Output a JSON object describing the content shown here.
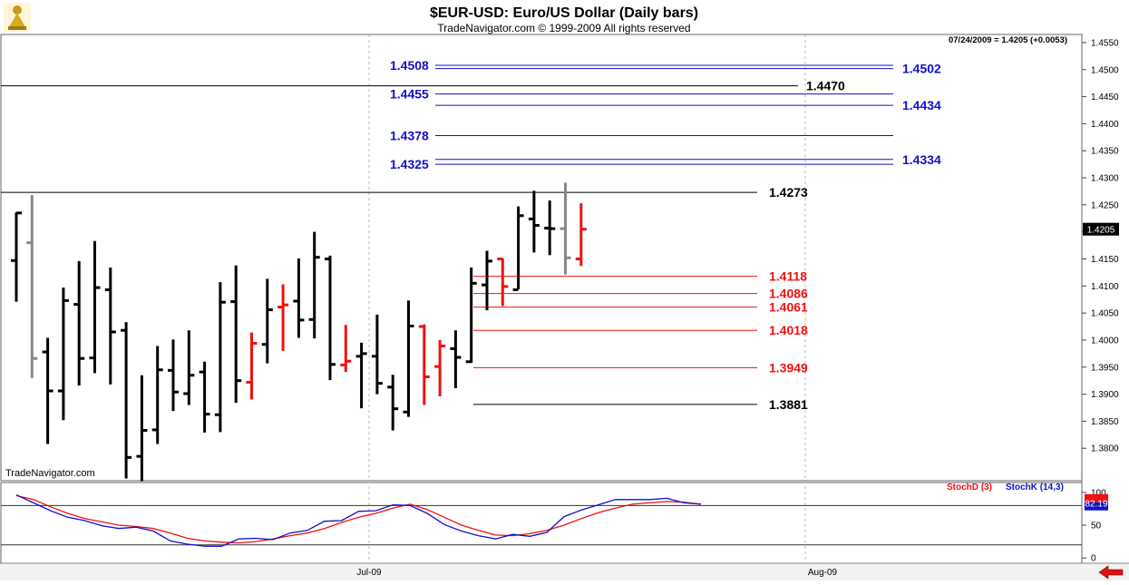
{
  "header": {
    "title": "$EUR-USD:  Euro/US Dollar  (Daily bars)",
    "copyright": "TradeNavigator.com © 1999-2009 All rights reserved",
    "quote": "07/24/2009 = 1.4205 (+0.0053)",
    "watermark": "TradeNavigator.com"
  },
  "colors": {
    "up_bar": "#000000",
    "down_bar": "#ee1111",
    "neutral_bar": "#888888",
    "blue_level": "#1010cc",
    "red_level": "#ee1111",
    "black_level": "#000000",
    "stoch_d": "#ee1111",
    "stoch_k": "#1010cc",
    "grid": "#bbbbbb"
  },
  "chart_data": [
    {
      "type": "ohlc",
      "title": "$EUR-USD:  Euro/US Dollar  (Daily bars)",
      "ylim": [
        1.374,
        1.4565
      ],
      "yticks": [
        "1.3800",
        "1.3850",
        "1.3900",
        "1.3950",
        "1.4000",
        "1.4050",
        "1.4100",
        "1.4150",
        "1.4200",
        "1.4250",
        "1.4300",
        "1.4350",
        "1.4400",
        "1.4450",
        "1.4500",
        "1.4550"
      ],
      "xticks": [
        "Jul-09",
        "Aug-09"
      ],
      "last_price_label": "1.4205",
      "bars": [
        {
          "o": 1.4147,
          "h": 1.4236,
          "l": 1.4071,
          "c": 1.4235,
          "color": "up"
        },
        {
          "o": 1.418,
          "h": 1.4268,
          "l": 1.393,
          "c": 1.3966,
          "color": "neutral"
        },
        {
          "o": 1.3978,
          "h": 1.4004,
          "l": 1.3808,
          "c": 1.3906,
          "color": "up"
        },
        {
          "o": 1.3906,
          "h": 1.4097,
          "l": 1.3852,
          "c": 1.4073,
          "color": "up"
        },
        {
          "o": 1.4066,
          "h": 1.4146,
          "l": 1.3916,
          "c": 1.3966,
          "color": "up"
        },
        {
          "o": 1.3967,
          "h": 1.4183,
          "l": 1.3939,
          "c": 1.4097,
          "color": "up"
        },
        {
          "o": 1.4093,
          "h": 1.4134,
          "l": 1.3918,
          "c": 1.4015,
          "color": "up"
        },
        {
          "o": 1.4018,
          "h": 1.4033,
          "l": 1.3744,
          "c": 1.3783,
          "color": "up"
        },
        {
          "o": 1.3785,
          "h": 1.3935,
          "l": 1.3739,
          "c": 1.3833,
          "color": "up"
        },
        {
          "o": 1.3834,
          "h": 1.3989,
          "l": 1.3808,
          "c": 1.3945,
          "color": "up"
        },
        {
          "o": 1.3944,
          "h": 1.4001,
          "l": 1.3869,
          "c": 1.3904,
          "color": "up"
        },
        {
          "o": 1.3901,
          "h": 1.4018,
          "l": 1.388,
          "c": 1.3935,
          "color": "up"
        },
        {
          "o": 1.3941,
          "h": 1.396,
          "l": 1.3829,
          "c": 1.3863,
          "color": "up"
        },
        {
          "o": 1.3862,
          "h": 1.4107,
          "l": 1.383,
          "c": 1.407,
          "color": "up"
        },
        {
          "o": 1.4071,
          "h": 1.4138,
          "l": 1.3884,
          "c": 1.3925,
          "color": "up"
        },
        {
          "o": 1.3922,
          "h": 1.4014,
          "l": 1.389,
          "c": 1.3994,
          "color": "down"
        },
        {
          "o": 1.3992,
          "h": 1.4113,
          "l": 1.3957,
          "c": 1.4056,
          "color": "up"
        },
        {
          "o": 1.4061,
          "h": 1.4103,
          "l": 1.398,
          "c": 1.4065,
          "color": "down"
        },
        {
          "o": 1.4072,
          "h": 1.4151,
          "l": 1.4004,
          "c": 1.4037,
          "color": "up"
        },
        {
          "o": 1.4038,
          "h": 1.42,
          "l": 1.4003,
          "c": 1.4153,
          "color": "up"
        },
        {
          "o": 1.415,
          "h": 1.4156,
          "l": 1.3926,
          "c": 1.3955,
          "color": "up"
        },
        {
          "o": 1.3954,
          "h": 1.4028,
          "l": 1.3941,
          "c": 1.3961,
          "color": "down"
        },
        {
          "o": 1.397,
          "h": 1.3995,
          "l": 1.3874,
          "c": 1.3975,
          "color": "up"
        },
        {
          "o": 1.397,
          "h": 1.4047,
          "l": 1.39,
          "c": 1.392,
          "color": "up"
        },
        {
          "o": 1.3913,
          "h": 1.3936,
          "l": 1.3833,
          "c": 1.3873,
          "color": "up"
        },
        {
          "o": 1.3867,
          "h": 1.4073,
          "l": 1.3858,
          "c": 1.4026,
          "color": "up"
        },
        {
          "o": 1.4025,
          "h": 1.4029,
          "l": 1.388,
          "c": 1.3932,
          "color": "down"
        },
        {
          "o": 1.3951,
          "h": 1.4,
          "l": 1.3896,
          "c": 1.3989,
          "color": "down"
        },
        {
          "o": 1.3984,
          "h": 1.4018,
          "l": 1.3911,
          "c": 1.3968,
          "color": "up"
        },
        {
          "o": 1.396,
          "h": 1.4134,
          "l": 1.3958,
          "c": 1.4105,
          "color": "up"
        },
        {
          "o": 1.4102,
          "h": 1.4165,
          "l": 1.4055,
          "c": 1.4146,
          "color": "up"
        },
        {
          "o": 1.415,
          "h": 1.4151,
          "l": 1.4063,
          "c": 1.4099,
          "color": "down"
        },
        {
          "o": 1.4093,
          "h": 1.4247,
          "l": 1.4094,
          "c": 1.423,
          "color": "up"
        },
        {
          "o": 1.4224,
          "h": 1.4276,
          "l": 1.4162,
          "c": 1.4212,
          "color": "up"
        },
        {
          "o": 1.4207,
          "h": 1.4258,
          "l": 1.4157,
          "c": 1.4206,
          "color": "up"
        },
        {
          "o": 1.4206,
          "h": 1.4291,
          "l": 1.4121,
          "c": 1.4152,
          "color": "neutral"
        },
        {
          "o": 1.415,
          "h": 1.4253,
          "l": 1.4137,
          "c": 1.4205,
          "color": "down"
        }
      ],
      "levels": [
        {
          "value": 1.4508,
          "label": "1.4508",
          "color": "blue",
          "side": "left"
        },
        {
          "value": 1.4502,
          "label": "1.4502",
          "color": "blue",
          "side": "right"
        },
        {
          "value": 1.447,
          "label": "1.4470",
          "color": "black",
          "side": "right"
        },
        {
          "value": 1.4455,
          "label": "1.4455",
          "color": "blue",
          "side": "left"
        },
        {
          "value": 1.4434,
          "label": "1.4434",
          "color": "blue",
          "side": "right"
        },
        {
          "value": 1.4378,
          "label": "1.4378",
          "color": "blue",
          "side": "left"
        },
        {
          "value": 1.4334,
          "label": "1.4334",
          "color": "blue",
          "side": "right"
        },
        {
          "value": 1.4325,
          "label": "1.4325",
          "color": "blue",
          "side": "left"
        },
        {
          "value": 1.4273,
          "label": "1.4273",
          "color": "black",
          "side": "right"
        },
        {
          "value": 1.4118,
          "label": "1.4118",
          "color": "red",
          "side": "right"
        },
        {
          "value": 1.4086,
          "label": "1.4086",
          "color": "red",
          "side": "right"
        },
        {
          "value": 1.4061,
          "label": "1.4061",
          "color": "red",
          "side": "right"
        },
        {
          "value": 1.4018,
          "label": "1.4018",
          "color": "red",
          "side": "right"
        },
        {
          "value": 1.3949,
          "label": "1.3949",
          "color": "red",
          "side": "right"
        },
        {
          "value": 1.3881,
          "label": "1.3881",
          "color": "black",
          "side": "right"
        }
      ]
    },
    {
      "type": "line",
      "legend": [
        "StochD (3)",
        "StochK (14,3)"
      ],
      "ylim": [
        -8,
        115
      ],
      "yticks": [
        "100",
        "50",
        "0"
      ],
      "last_value_label": "82.19",
      "series": [
        {
          "name": "StochD (3)",
          "values": [
            95,
            89,
            78,
            68,
            60,
            55,
            50,
            48,
            45,
            38,
            30,
            26,
            24,
            23,
            25,
            29,
            34,
            38,
            45,
            54,
            62,
            68,
            76,
            82,
            74,
            62,
            50,
            42,
            35,
            34,
            37,
            42,
            50,
            60,
            69,
            76,
            82,
            84,
            86,
            85,
            82
          ]
        },
        {
          "name": "StochK (14,3)",
          "values": [
            96,
            84,
            72,
            62,
            57,
            49,
            45,
            47,
            41,
            26,
            21,
            18,
            18,
            29,
            30,
            28,
            38,
            42,
            56,
            57,
            71,
            72,
            81,
            80,
            68,
            51,
            41,
            34,
            29,
            36,
            33,
            39,
            63,
            73,
            81,
            89,
            89,
            89,
            91,
            84,
            82
          ]
        }
      ]
    }
  ]
}
